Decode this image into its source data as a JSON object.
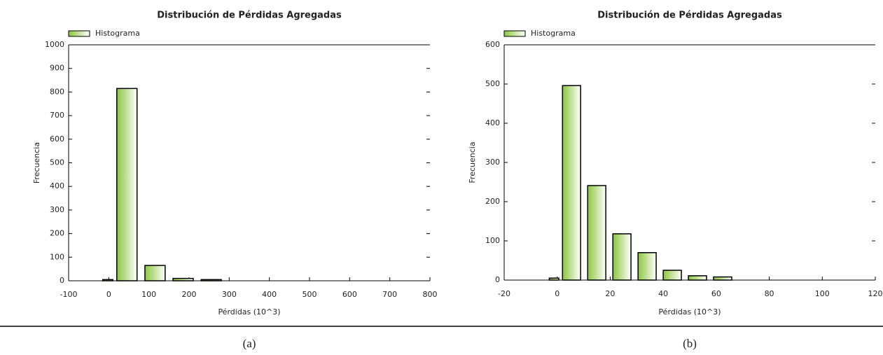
{
  "chart_data": [
    {
      "type": "histogram",
      "title": "Distribución de Pérdidas Agregadas",
      "legend": "Histograma",
      "xlabel": "Pérdidas (10^3)",
      "ylabel": "Frecuencia",
      "label": "(a)",
      "bins": [
        -15,
        20,
        90,
        160,
        230,
        300
      ],
      "values": [
        5,
        815,
        65,
        10,
        5
      ],
      "color": "#8cc63f",
      "xlim": [
        -100,
        800
      ],
      "xticks": [
        -100,
        0,
        100,
        200,
        300,
        400,
        500,
        600,
        700,
        800
      ],
      "ylim": [
        0,
        1000
      ],
      "yticks": [
        0,
        100,
        200,
        300,
        400,
        500,
        600,
        700,
        800,
        900,
        1000
      ]
    },
    {
      "type": "histogram",
      "title": "Distribución de Pérdidas Agregadas",
      "legend": "Histograma",
      "xlabel": "Pérdidas (10^3)",
      "ylabel": "Frecuencia",
      "label": "(b)",
      "bins": [
        -3,
        2,
        11.5,
        21,
        30.5,
        40,
        49.5,
        59,
        68.5
      ],
      "values": [
        5,
        496,
        241,
        118,
        70,
        25,
        11,
        8
      ],
      "color": "#8cc63f",
      "xlim": [
        -20,
        120
      ],
      "xticks": [
        -20,
        0,
        20,
        40,
        60,
        80,
        100,
        120
      ],
      "ylim": [
        0,
        600
      ],
      "yticks": [
        0,
        100,
        200,
        300,
        400,
        500,
        600
      ]
    }
  ]
}
